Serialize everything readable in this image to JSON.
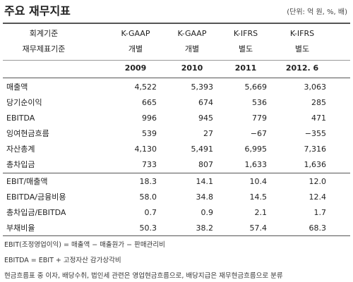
{
  "header": {
    "title": "주요 재무지표",
    "unit": "(단위: 억 원, %, 배)"
  },
  "table": {
    "header_rows": [
      [
        "회계기준",
        "K-GAAP",
        "K-GAAP",
        "K-IFRS",
        "K-IFRS"
      ],
      [
        "재무제표기준",
        "개별",
        "개별",
        "별도",
        "별도"
      ],
      [
        "",
        "2009",
        "2010",
        "2011",
        "2012. 6"
      ]
    ],
    "groups": [
      [
        [
          "매출액",
          "4,522",
          "5,393",
          "5,669",
          "3,063"
        ],
        [
          "당기순이익",
          "665",
          "674",
          "536",
          "285"
        ],
        [
          "EBITDA",
          "996",
          "945",
          "779",
          "471"
        ],
        [
          "잉여현금흐름",
          "539",
          "27",
          "−67",
          "−355"
        ],
        [
          "자산총계",
          "4,130",
          "5,491",
          "6,995",
          "7,316"
        ],
        [
          "총차입금",
          "733",
          "807",
          "1,633",
          "1,636"
        ]
      ],
      [
        [
          "EBIT/매출액",
          "18.3",
          "14.1",
          "10.4",
          "12.0"
        ],
        [
          "EBITDA/금융비용",
          "58.0",
          "34.8",
          "14.5",
          "12.4"
        ],
        [
          "총차입금/EBITDA",
          "0.7",
          "0.9",
          "2.1",
          "1.7"
        ],
        [
          "부채비율",
          "50.3",
          "38.2",
          "57.4",
          "68.3"
        ]
      ]
    ]
  },
  "notes": [
    "EBIT(조정영업이익) = 매출액 − 매출원가 − 판매관리비",
    "EBITDA = EBIT + 고정자산 감가상각비",
    "현금흐름표 중 이자, 배당수취, 법인세 관련은 영업현금흐름으로, 배당지급은 재무현금흐름으로 분류"
  ]
}
